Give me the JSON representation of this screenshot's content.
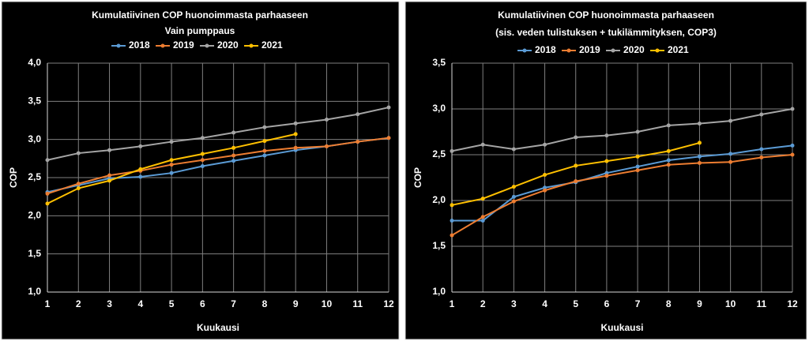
{
  "chart_data": [
    {
      "type": "line",
      "title": "Kumulatiivinen COP huonoimmasta parhaaseen",
      "subtitle": "Vain pumppaus",
      "x_label": "Kuukausi",
      "y_label": "COP",
      "x": [
        1,
        2,
        3,
        4,
        5,
        6,
        7,
        8,
        9,
        10,
        11,
        12
      ],
      "xlim": [
        1,
        12
      ],
      "xticks": [
        1,
        2,
        3,
        4,
        5,
        6,
        7,
        8,
        9,
        10,
        11,
        12
      ],
      "ylim": [
        1,
        4
      ],
      "yticks": [
        {
          "value": 1,
          "label": "1,0"
        },
        {
          "value": 1.5,
          "label": "1,5"
        },
        {
          "value": 2,
          "label": "2,0"
        },
        {
          "value": 2.5,
          "label": "2,5"
        },
        {
          "value": 3,
          "label": "3,0"
        },
        {
          "value": 3.5,
          "label": "3,5"
        },
        {
          "value": 4,
          "label": "4,0"
        }
      ],
      "grid": true,
      "legend": "top",
      "series": [
        {
          "name": "2018",
          "color": "#5b9bd5",
          "values": [
            2.31,
            2.4,
            2.49,
            2.51,
            2.56,
            2.65,
            2.72,
            2.79,
            2.86,
            2.91,
            2.97,
            3.02
          ]
        },
        {
          "name": "2019",
          "color": "#ed7d31",
          "values": [
            2.29,
            2.42,
            2.53,
            2.59,
            2.67,
            2.73,
            2.79,
            2.85,
            2.89,
            2.91,
            2.97,
            3.02
          ]
        },
        {
          "name": "2020",
          "color": "#a5a5a5",
          "values": [
            2.73,
            2.82,
            2.86,
            2.91,
            2.97,
            3.02,
            3.09,
            3.16,
            3.21,
            3.26,
            3.33,
            3.42
          ]
        },
        {
          "name": "2021",
          "color": "#ffc000",
          "values": [
            2.16,
            2.36,
            2.46,
            2.61,
            2.73,
            2.81,
            2.89,
            2.98,
            3.07,
            null,
            null,
            null
          ]
        }
      ]
    },
    {
      "type": "line",
      "title": "Kumulatiivinen COP huonoimmasta parhaaseen",
      "subtitle": "(sis. veden tulistuksen + tukilämmityksen, COP3)",
      "x_label": "Kuukausi",
      "y_label": "COP",
      "x": [
        1,
        2,
        3,
        4,
        5,
        6,
        7,
        8,
        9,
        10,
        11,
        12
      ],
      "xlim": [
        1,
        12
      ],
      "xticks": [
        1,
        2,
        3,
        4,
        5,
        6,
        7,
        8,
        9,
        10,
        11,
        12
      ],
      "ylim": [
        1,
        3.5
      ],
      "yticks": [
        {
          "value": 1,
          "label": "1,0"
        },
        {
          "value": 1.5,
          "label": "1,5"
        },
        {
          "value": 2,
          "label": "2,0"
        },
        {
          "value": 2.5,
          "label": "2,5"
        },
        {
          "value": 3,
          "label": "3,0"
        },
        {
          "value": 3.5,
          "label": "3,5"
        }
      ],
      "grid": true,
      "legend": "top",
      "series": [
        {
          "name": "2018",
          "color": "#5b9bd5",
          "values": [
            1.78,
            1.78,
            2.04,
            2.14,
            2.2,
            2.3,
            2.37,
            2.44,
            2.48,
            2.51,
            2.56,
            2.6
          ]
        },
        {
          "name": "2019",
          "color": "#ed7d31",
          "values": [
            1.62,
            1.82,
            1.99,
            2.11,
            2.21,
            2.27,
            2.33,
            2.39,
            2.41,
            2.42,
            2.47,
            2.5
          ]
        },
        {
          "name": "2020",
          "color": "#a5a5a5",
          "values": [
            2.54,
            2.61,
            2.56,
            2.61,
            2.69,
            2.71,
            2.75,
            2.82,
            2.84,
            2.87,
            2.94,
            3.0
          ]
        },
        {
          "name": "2021",
          "color": "#ffc000",
          "values": [
            1.95,
            2.02,
            2.15,
            2.28,
            2.38,
            2.43,
            2.48,
            2.54,
            2.63,
            null,
            null,
            null
          ]
        }
      ]
    }
  ]
}
